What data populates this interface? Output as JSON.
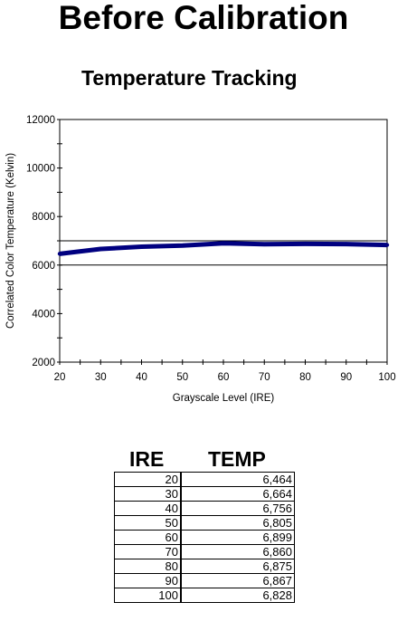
{
  "page_title": "Before Calibration",
  "chart_data": {
    "type": "line",
    "title": "Temperature Tracking",
    "xlabel": "Grayscale Level (IRE)",
    "ylabel": "Correlated Color Temperature (Kelvin)",
    "xlim": [
      20,
      100
    ],
    "ylim": [
      2000,
      12000
    ],
    "x_ticks": [
      20,
      30,
      40,
      50,
      60,
      70,
      80,
      90,
      100
    ],
    "y_ticks": [
      2000,
      4000,
      6000,
      8000,
      10000,
      12000
    ],
    "reference_lines": [
      7000,
      6000
    ],
    "grid": false,
    "legend": "none",
    "series_color": "#000080",
    "series": [
      {
        "x": [
          20,
          30,
          40,
          50,
          60,
          70,
          80,
          90,
          100
        ],
        "values": [
          6464,
          6664,
          6756,
          6805,
          6899,
          6860,
          6875,
          6867,
          6828
        ]
      }
    ]
  },
  "table": {
    "headers": [
      "IRE",
      "TEMP"
    ],
    "rows": [
      [
        "20",
        "6,464"
      ],
      [
        "30",
        "6,664"
      ],
      [
        "40",
        "6,756"
      ],
      [
        "50",
        "6,805"
      ],
      [
        "60",
        "6,899"
      ],
      [
        "70",
        "6,860"
      ],
      [
        "80",
        "6,875"
      ],
      [
        "90",
        "6,867"
      ],
      [
        "100",
        "6,828"
      ]
    ]
  }
}
